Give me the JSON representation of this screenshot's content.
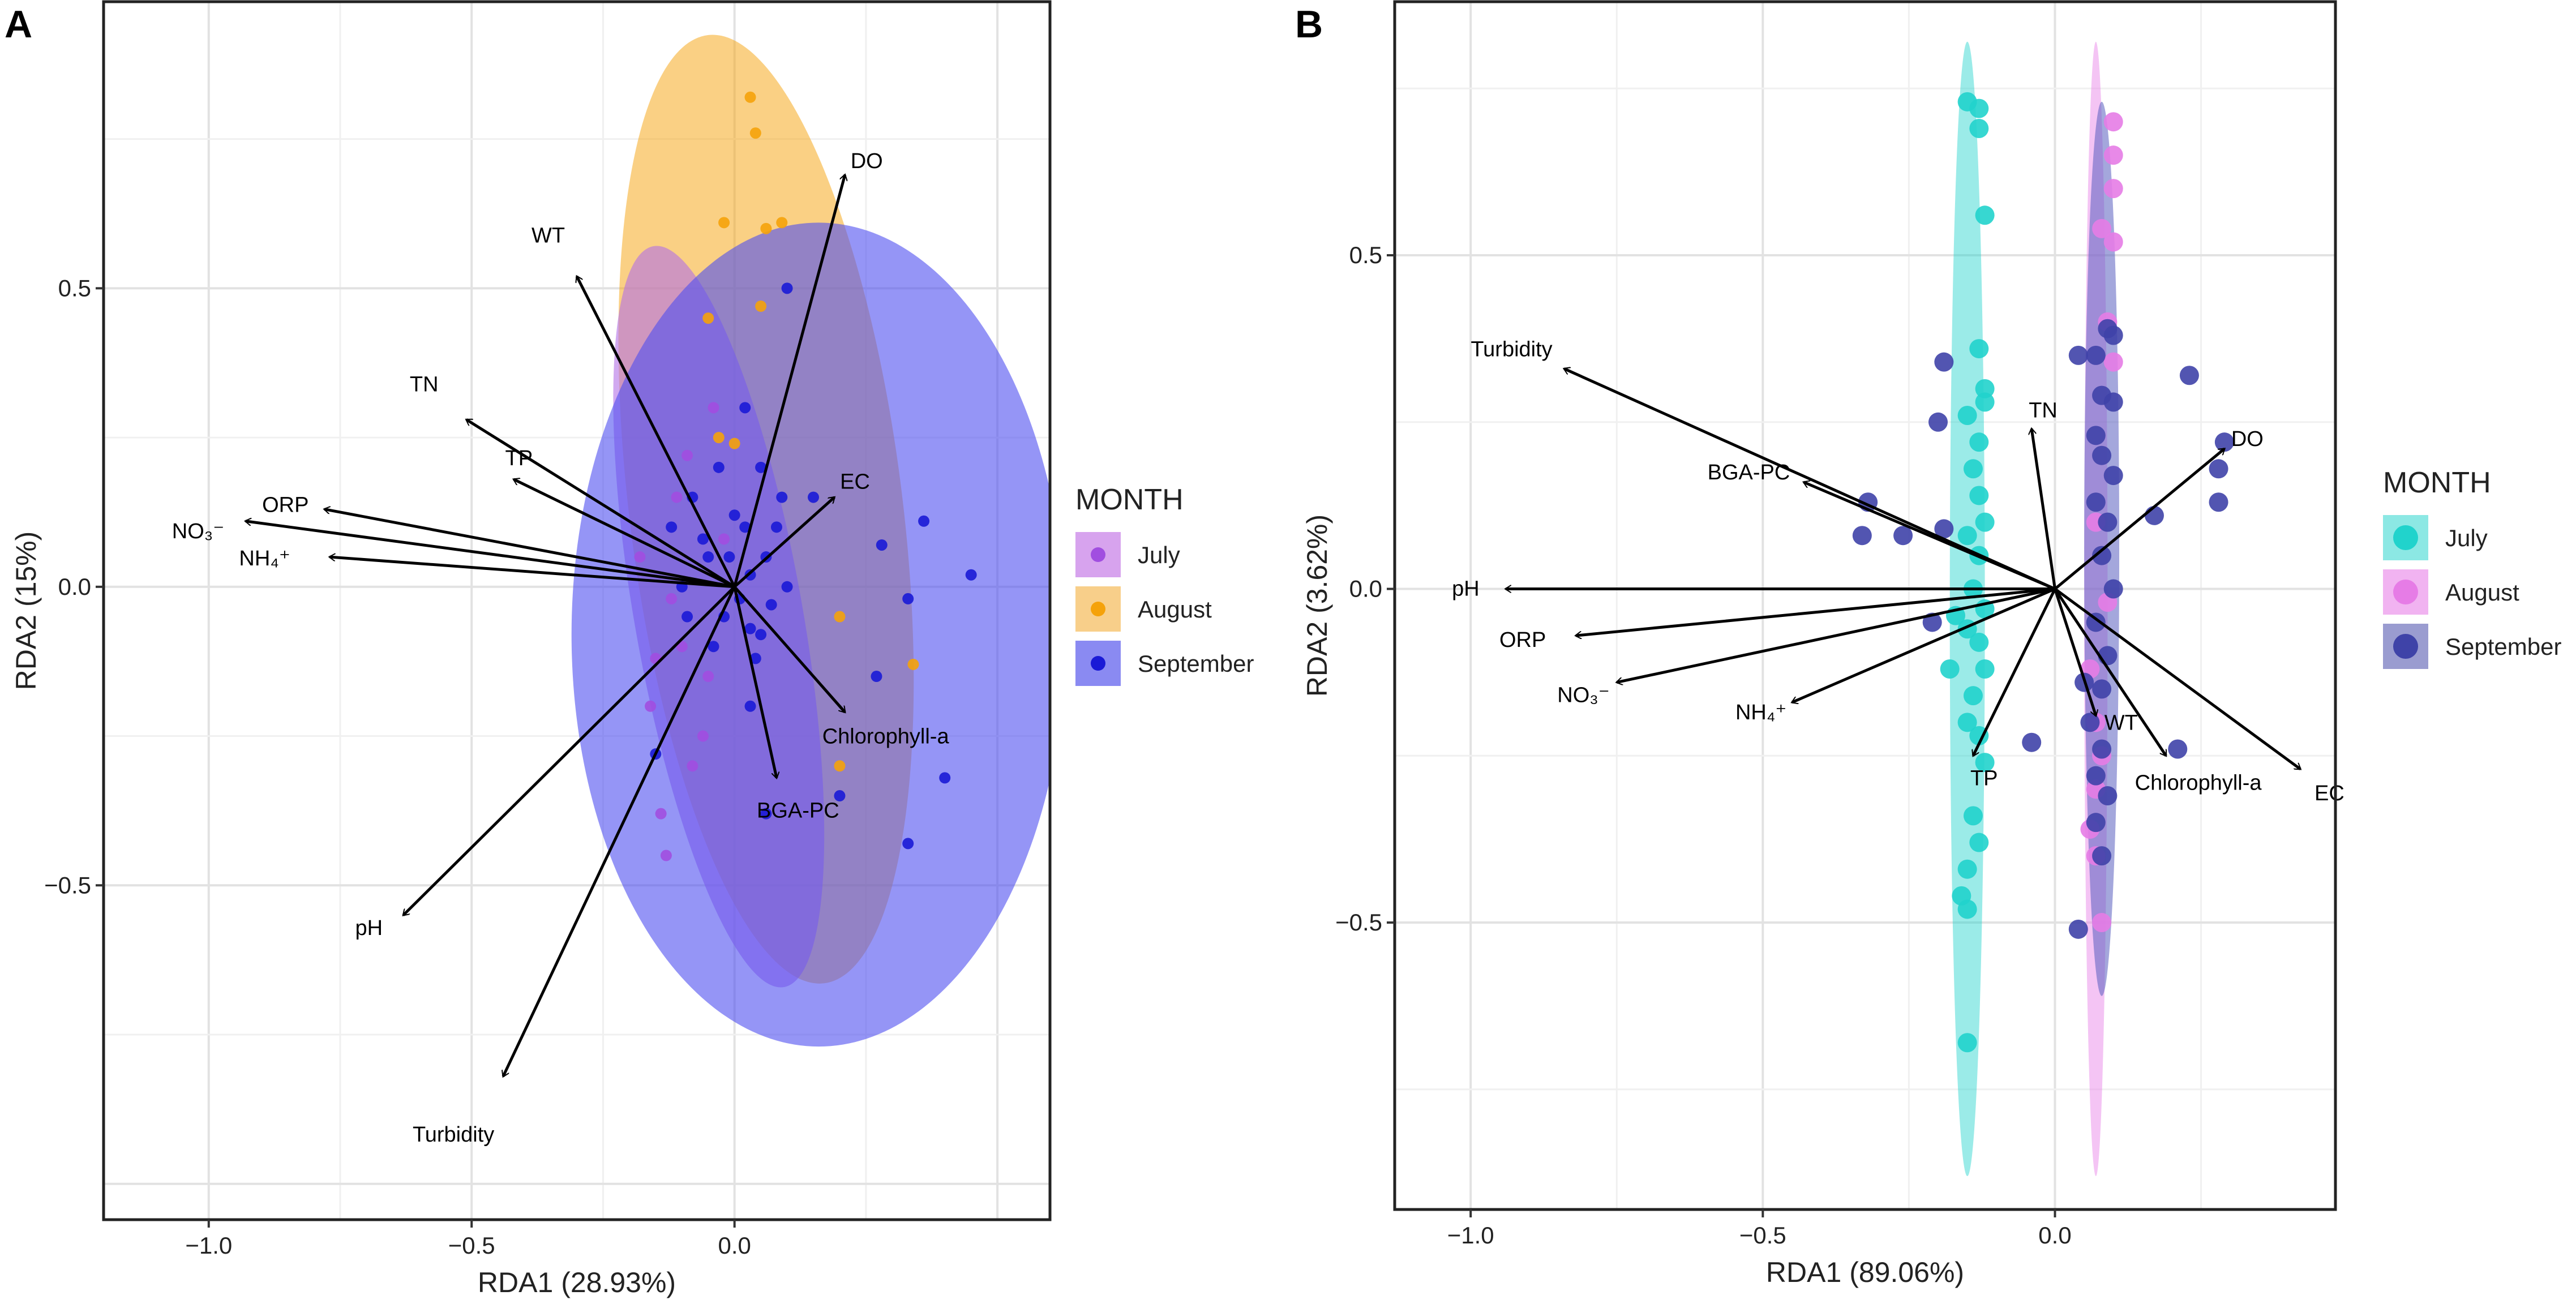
{
  "chart_data": [
    {
      "type": "scatter",
      "panel": "A",
      "xlabel": "RDA1 (28.93%)",
      "ylabel": "RDA2 (15%)",
      "xlim": [
        -1.2,
        0.6
      ],
      "ylim": [
        -1.06,
        0.98
      ],
      "xticks": [
        -1.0,
        -0.5,
        0.0
      ],
      "xtick_labels": [
        "−1.0",
        "−0.5",
        "0.0"
      ],
      "yticks": [
        -0.5,
        0.0,
        0.5
      ],
      "ytick_labels": [
        "−0.5",
        "0.0",
        "0.5"
      ],
      "grid": true,
      "legend": {
        "title": "MONTH",
        "position": "right",
        "entries": [
          {
            "name": "July",
            "color": "#a14ee0",
            "fill": "#d7a3ee"
          },
          {
            "name": "August",
            "color": "#f5a20a",
            "fill": "#f8cf8a"
          },
          {
            "name": "September",
            "color": "#1a1ad6",
            "fill": "#8a8af2"
          }
        ]
      },
      "ellipses": [
        {
          "group": "August",
          "cx": 0.06,
          "cy": 0.13,
          "rx": 0.26,
          "ry": 0.8,
          "angle": 7,
          "color": "#f5a20a",
          "opacity": 0.5
        },
        {
          "group": "July",
          "cx": -0.03,
          "cy": -0.05,
          "rx": 0.16,
          "ry": 0.63,
          "angle": 10,
          "color": "#b36fe6",
          "opacity": 0.6
        },
        {
          "group": "September",
          "cx": 0.16,
          "cy": -0.08,
          "rx": 0.47,
          "ry": 0.69,
          "angle": 0,
          "color": "#4e4ef0",
          "opacity": 0.6
        }
      ],
      "points": {
        "July": [
          [
            -0.12,
            -0.02
          ],
          [
            -0.1,
            -0.1
          ],
          [
            -0.16,
            -0.2
          ],
          [
            -0.08,
            -0.3
          ],
          [
            -0.14,
            -0.38
          ],
          [
            -0.05,
            -0.15
          ],
          [
            -0.18,
            0.05
          ],
          [
            -0.13,
            -0.45
          ],
          [
            -0.02,
            0.08
          ],
          [
            -0.06,
            -0.25
          ],
          [
            -0.11,
            0.15
          ],
          [
            -0.15,
            -0.12
          ],
          [
            -0.04,
            0.3
          ],
          [
            -0.09,
            0.22
          ]
        ],
        "August": [
          [
            0.03,
            0.82
          ],
          [
            0.04,
            0.76
          ],
          [
            -0.02,
            0.61
          ],
          [
            0.06,
            0.6
          ],
          [
            0.09,
            0.61
          ],
          [
            0.05,
            0.47
          ],
          [
            -0.05,
            0.45
          ],
          [
            0.2,
            -0.05
          ],
          [
            0.34,
            -0.13
          ],
          [
            0.2,
            -0.3
          ],
          [
            -0.03,
            0.25
          ],
          [
            0.0,
            0.24
          ]
        ],
        "September": [
          [
            -0.1,
            0.0
          ],
          [
            -0.05,
            0.05
          ],
          [
            -0.02,
            -0.05
          ],
          [
            0.02,
            0.1
          ],
          [
            0.05,
            -0.08
          ],
          [
            0.0,
            0.12
          ],
          [
            -0.08,
            0.15
          ],
          [
            0.03,
            0.02
          ],
          [
            -0.04,
            -0.1
          ],
          [
            0.06,
            0.05
          ],
          [
            0.01,
            -0.02
          ],
          [
            -0.03,
            0.2
          ],
          [
            0.08,
            0.1
          ],
          [
            0.04,
            -0.12
          ],
          [
            -0.06,
            0.08
          ],
          [
            0.1,
            0.0
          ],
          [
            0.02,
            0.3
          ],
          [
            -0.12,
            0.1
          ],
          [
            0.05,
            0.2
          ],
          [
            0.07,
            -0.03
          ],
          [
            -0.01,
            0.05
          ],
          [
            0.03,
            -0.07
          ],
          [
            0.09,
            0.15
          ],
          [
            -0.09,
            -0.05
          ],
          [
            0.28,
            0.07
          ],
          [
            0.36,
            0.11
          ],
          [
            0.45,
            0.02
          ],
          [
            0.33,
            -0.02
          ],
          [
            0.27,
            -0.15
          ],
          [
            0.4,
            -0.32
          ],
          [
            0.33,
            -0.43
          ],
          [
            0.2,
            -0.35
          ],
          [
            0.06,
            -0.38
          ],
          [
            0.03,
            -0.2
          ],
          [
            -0.15,
            -0.28
          ],
          [
            0.1,
            0.5
          ],
          [
            0.15,
            0.15
          ]
        ]
      },
      "vectors": [
        {
          "label": "DO",
          "x": 0.21,
          "y": 0.69
        },
        {
          "label": "WT",
          "x": -0.3,
          "y": 0.52
        },
        {
          "label": "TN",
          "x": -0.51,
          "y": 0.28
        },
        {
          "label": "TP",
          "x": -0.42,
          "y": 0.18
        },
        {
          "label": "EC",
          "x": 0.19,
          "y": 0.15
        },
        {
          "label": "ORP",
          "x": -0.78,
          "y": 0.13
        },
        {
          "label": "NH₄⁺",
          "x": -0.77,
          "y": 0.05
        },
        {
          "label": "NO₃⁻",
          "x": -0.93,
          "y": 0.11
        },
        {
          "label": "Chlorophyll-a",
          "x": 0.21,
          "y": -0.21
        },
        {
          "label": "BGA-PC",
          "x": 0.08,
          "y": -0.32
        },
        {
          "label": "pH",
          "x": -0.63,
          "y": -0.55
        },
        {
          "label": "Turbidity",
          "x": -0.44,
          "y": -0.82
        }
      ]
    },
    {
      "type": "scatter",
      "panel": "B",
      "xlabel": "RDA1 (89.06%)",
      "ylabel": "RDA2 (3.62%)",
      "xlim": [
        -1.13,
        0.48
      ],
      "ylim": [
        -0.93,
        0.88
      ],
      "xticks": [
        -1.0,
        -0.5,
        0.0
      ],
      "xtick_labels": [
        "−1.0",
        "−0.5",
        "0.0"
      ],
      "yticks": [
        -0.5,
        0.0,
        0.5
      ],
      "ytick_labels": [
        "−0.5",
        "0.0",
        "0.5"
      ],
      "grid": true,
      "legend": {
        "title": "MONTH",
        "position": "right",
        "entries": [
          {
            "name": "July",
            "color": "#21d3cc",
            "fill": "#8ce8e4"
          },
          {
            "name": "August",
            "color": "#e67ce6",
            "fill": "#f1b3f1"
          },
          {
            "name": "September",
            "color": "#3f43a8",
            "fill": "#9a9cd0"
          }
        ]
      },
      "ellipses": [
        {
          "group": "July",
          "cx": -0.15,
          "cy": -0.03,
          "rx": 0.03,
          "ry": 0.85,
          "angle": 0,
          "color": "#21d3cc",
          "opacity": 0.45
        },
        {
          "group": "August",
          "cx": 0.07,
          "cy": -0.03,
          "rx": 0.02,
          "ry": 0.85,
          "angle": 0,
          "color": "#e67ce6",
          "opacity": 0.45
        },
        {
          "group": "September",
          "cx": 0.08,
          "cy": 0.06,
          "rx": 0.03,
          "ry": 0.67,
          "angle": 0,
          "color": "#5a5fbf",
          "opacity": 0.55
        }
      ],
      "points": {
        "July": [
          [
            -0.15,
            0.73
          ],
          [
            -0.13,
            0.72
          ],
          [
            -0.13,
            0.69
          ],
          [
            -0.12,
            0.56
          ],
          [
            -0.13,
            0.36
          ],
          [
            -0.12,
            0.3
          ],
          [
            -0.15,
            0.26
          ],
          [
            -0.13,
            0.22
          ],
          [
            -0.12,
            0.28
          ],
          [
            -0.14,
            0.18
          ],
          [
            -0.13,
            0.14
          ],
          [
            -0.12,
            0.1
          ],
          [
            -0.15,
            0.08
          ],
          [
            -0.13,
            0.05
          ],
          [
            -0.14,
            0.0
          ],
          [
            -0.12,
            -0.03
          ],
          [
            -0.15,
            -0.06
          ],
          [
            -0.13,
            -0.08
          ],
          [
            -0.12,
            -0.12
          ],
          [
            -0.14,
            -0.16
          ],
          [
            -0.15,
            -0.2
          ],
          [
            -0.13,
            -0.22
          ],
          [
            -0.12,
            -0.26
          ],
          [
            -0.14,
            -0.34
          ],
          [
            -0.13,
            -0.38
          ],
          [
            -0.15,
            -0.42
          ],
          [
            -0.16,
            -0.46
          ],
          [
            -0.15,
            -0.48
          ],
          [
            -0.15,
            -0.68
          ],
          [
            -0.18,
            -0.12
          ],
          [
            -0.17,
            -0.04
          ]
        ],
        "August": [
          [
            0.1,
            0.7
          ],
          [
            0.1,
            0.65
          ],
          [
            0.1,
            0.6
          ],
          [
            0.08,
            0.54
          ],
          [
            0.1,
            0.52
          ],
          [
            0.09,
            0.4
          ],
          [
            0.1,
            0.34
          ],
          [
            0.07,
            0.1
          ],
          [
            0.09,
            -0.02
          ],
          [
            0.06,
            -0.12
          ],
          [
            0.07,
            -0.2
          ],
          [
            0.08,
            -0.25
          ],
          [
            0.07,
            -0.3
          ],
          [
            0.06,
            -0.36
          ],
          [
            0.07,
            -0.4
          ],
          [
            0.08,
            -0.5
          ]
        ],
        "September": [
          [
            0.09,
            0.39
          ],
          [
            0.1,
            0.38
          ],
          [
            0.07,
            0.35
          ],
          [
            0.08,
            0.29
          ],
          [
            0.1,
            0.28
          ],
          [
            0.07,
            0.23
          ],
          [
            0.08,
            0.2
          ],
          [
            0.1,
            0.17
          ],
          [
            0.07,
            0.13
          ],
          [
            0.09,
            0.1
          ],
          [
            0.08,
            0.05
          ],
          [
            0.1,
            0.0
          ],
          [
            0.07,
            -0.05
          ],
          [
            0.09,
            -0.1
          ],
          [
            0.08,
            -0.15
          ],
          [
            0.06,
            -0.2
          ],
          [
            0.08,
            -0.24
          ],
          [
            0.07,
            -0.28
          ],
          [
            0.09,
            -0.31
          ],
          [
            0.07,
            -0.35
          ],
          [
            0.08,
            -0.4
          ],
          [
            0.05,
            -0.14
          ],
          [
            0.04,
            0.35
          ],
          [
            -0.19,
            0.34
          ],
          [
            -0.2,
            0.25
          ],
          [
            -0.32,
            0.13
          ],
          [
            -0.33,
            0.08
          ],
          [
            -0.26,
            0.08
          ],
          [
            -0.19,
            0.09
          ],
          [
            -0.21,
            -0.05
          ],
          [
            -0.04,
            -0.23
          ],
          [
            0.23,
            0.32
          ],
          [
            0.29,
            0.22
          ],
          [
            0.28,
            0.18
          ],
          [
            0.28,
            0.13
          ],
          [
            0.17,
            0.11
          ],
          [
            0.21,
            -0.24
          ],
          [
            0.04,
            -0.51
          ]
        ]
      },
      "vectors": [
        {
          "label": "Turbidity",
          "x": -0.84,
          "y": 0.33
        },
        {
          "label": "BGA-PC",
          "x": -0.43,
          "y": 0.16
        },
        {
          "label": "TN",
          "x": -0.04,
          "y": 0.24
        },
        {
          "label": "DO",
          "x": 0.29,
          "y": 0.21
        },
        {
          "label": "pH",
          "x": -0.94,
          "y": 0.0
        },
        {
          "label": "ORP",
          "x": -0.82,
          "y": -0.07
        },
        {
          "label": "NO₃⁻",
          "x": -0.75,
          "y": -0.14
        },
        {
          "label": "NH₄⁺",
          "x": -0.45,
          "y": -0.17
        },
        {
          "label": "TP",
          "x": -0.14,
          "y": -0.25
        },
        {
          "label": "WT",
          "x": 0.07,
          "y": -0.19
        },
        {
          "label": "Chlorophyll-a",
          "x": 0.19,
          "y": -0.25
        },
        {
          "label": "EC",
          "x": 0.42,
          "y": -0.27
        }
      ]
    }
  ]
}
